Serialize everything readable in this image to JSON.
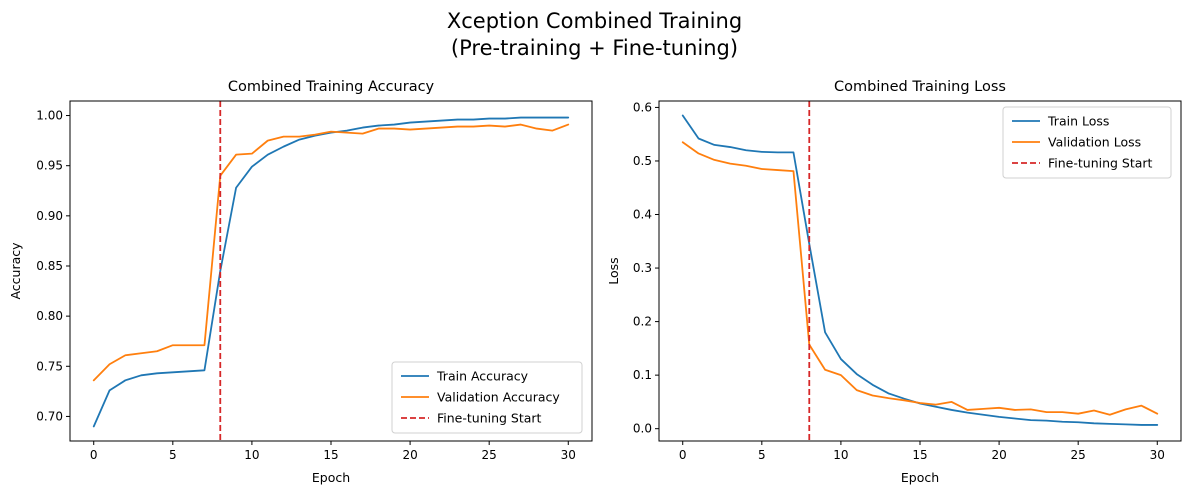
{
  "figure": {
    "title_line1": "Xception Combined Training",
    "title_line2": "(Pre-training + Fine-tuning)"
  },
  "colors": {
    "train": "#1f77b4",
    "validation": "#ff7f0e",
    "finetune_line": "#d62728",
    "axes": "#000000"
  },
  "chart_data": [
    {
      "type": "line",
      "title": "Combined Training Accuracy",
      "xlabel": "Epoch",
      "ylabel": "Accuracy",
      "xlim": [
        -1.5,
        31.5
      ],
      "ylim": [
        0.6755,
        1.0145
      ],
      "xticks": [
        0,
        5,
        10,
        15,
        20,
        25,
        30
      ],
      "yticks": [
        0.7,
        0.75,
        0.8,
        0.85,
        0.9,
        0.95,
        1.0
      ],
      "ytick_labels": [
        "0.70",
        "0.75",
        "0.80",
        "0.85",
        "0.90",
        "0.95",
        "1.00"
      ],
      "grid": false,
      "legend_position": "lower-right",
      "x": [
        0,
        1,
        2,
        3,
        4,
        5,
        6,
        7,
        8,
        9,
        10,
        11,
        12,
        13,
        14,
        15,
        16,
        17,
        18,
        19,
        20,
        21,
        22,
        23,
        24,
        25,
        26,
        27,
        28,
        29,
        30
      ],
      "series": [
        {
          "name": "Train Accuracy",
          "color_key": "train",
          "values": [
            0.69,
            0.726,
            0.736,
            0.741,
            0.743,
            0.744,
            0.745,
            0.746,
            0.845,
            0.928,
            0.949,
            0.961,
            0.969,
            0.976,
            0.98,
            0.983,
            0.985,
            0.988,
            0.99,
            0.991,
            0.993,
            0.994,
            0.995,
            0.996,
            0.996,
            0.997,
            0.997,
            0.998,
            0.998,
            0.998,
            0.998
          ]
        },
        {
          "name": "Validation Accuracy",
          "color_key": "validation",
          "values": [
            0.736,
            0.752,
            0.761,
            0.763,
            0.765,
            0.771,
            0.771,
            0.771,
            0.94,
            0.961,
            0.962,
            0.975,
            0.979,
            0.979,
            0.981,
            0.984,
            0.983,
            0.982,
            0.987,
            0.987,
            0.986,
            0.987,
            0.988,
            0.989,
            0.989,
            0.99,
            0.989,
            0.991,
            0.987,
            0.985,
            0.991
          ]
        }
      ],
      "vline": {
        "name": "Fine-tuning Start",
        "x": 8,
        "color_key": "finetune_line",
        "style": "dashed"
      }
    },
    {
      "type": "line",
      "title": "Combined Training Loss",
      "xlabel": "Epoch",
      "ylabel": "Loss",
      "xlim": [
        -1.5,
        31.5
      ],
      "ylim": [
        -0.023,
        0.612
      ],
      "xticks": [
        0,
        5,
        10,
        15,
        20,
        25,
        30
      ],
      "yticks": [
        0.0,
        0.1,
        0.2,
        0.3,
        0.4,
        0.5,
        0.6
      ],
      "ytick_labels": [
        "0.0",
        "0.1",
        "0.2",
        "0.3",
        "0.4",
        "0.5",
        "0.6"
      ],
      "grid": false,
      "legend_position": "upper-right",
      "x": [
        0,
        1,
        2,
        3,
        4,
        5,
        6,
        7,
        8,
        9,
        10,
        11,
        12,
        13,
        14,
        15,
        16,
        17,
        18,
        19,
        20,
        21,
        22,
        23,
        24,
        25,
        26,
        27,
        28,
        29,
        30
      ],
      "series": [
        {
          "name": "Train Loss",
          "color_key": "train",
          "values": [
            0.585,
            0.542,
            0.53,
            0.526,
            0.52,
            0.517,
            0.516,
            0.516,
            0.345,
            0.18,
            0.13,
            0.102,
            0.082,
            0.066,
            0.056,
            0.047,
            0.041,
            0.035,
            0.03,
            0.026,
            0.022,
            0.019,
            0.016,
            0.015,
            0.013,
            0.012,
            0.01,
            0.009,
            0.008,
            0.007,
            0.007
          ]
        },
        {
          "name": "Validation Loss",
          "color_key": "validation",
          "values": [
            0.535,
            0.514,
            0.502,
            0.495,
            0.491,
            0.485,
            0.483,
            0.481,
            0.157,
            0.11,
            0.1,
            0.072,
            0.062,
            0.057,
            0.053,
            0.048,
            0.045,
            0.05,
            0.035,
            0.037,
            0.039,
            0.035,
            0.036,
            0.031,
            0.031,
            0.028,
            0.034,
            0.026,
            0.036,
            0.043,
            0.028
          ]
        }
      ],
      "vline": {
        "name": "Fine-tuning Start",
        "x": 8,
        "color_key": "finetune_line",
        "style": "dashed"
      }
    }
  ]
}
